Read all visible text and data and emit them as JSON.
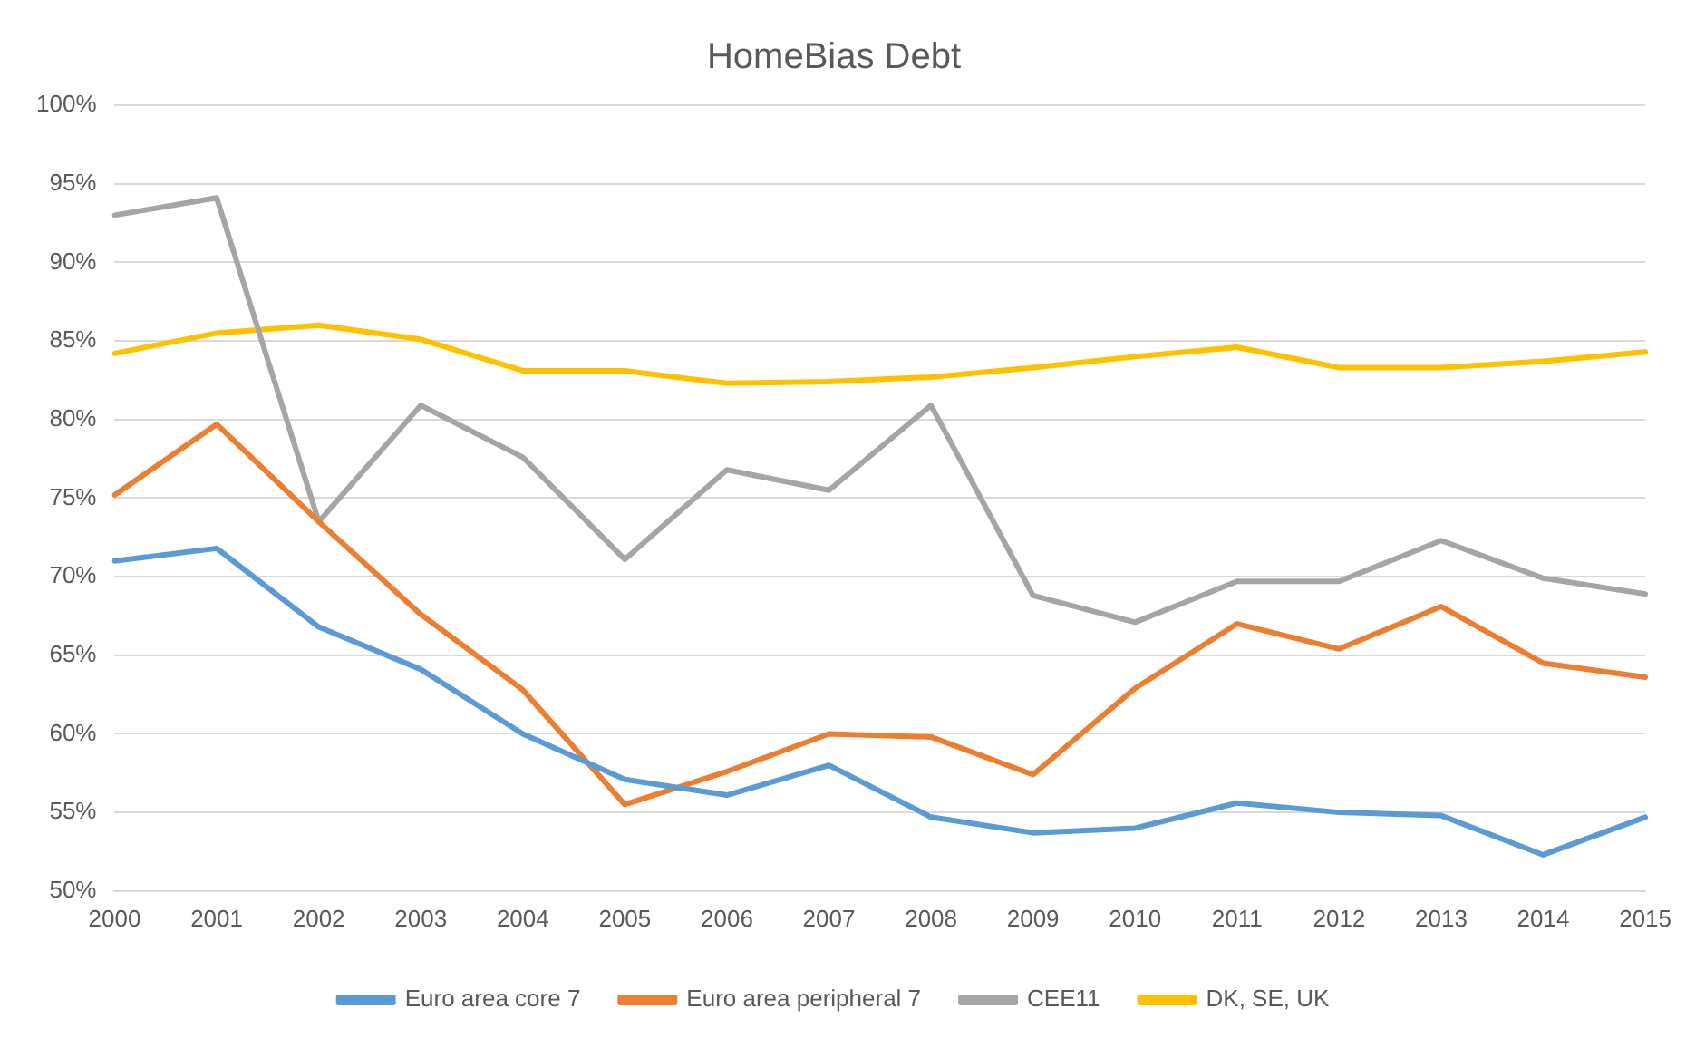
{
  "chart_data": {
    "type": "line",
    "title": "HomeBias Debt",
    "categories": [
      "2000",
      "2001",
      "2002",
      "2003",
      "2004",
      "2005",
      "2006",
      "2007",
      "2008",
      "2009",
      "2010",
      "2011",
      "2012",
      "2013",
      "2014",
      "2015"
    ],
    "series": [
      {
        "name": "Euro area core 7",
        "color": "#5b9bd5",
        "values": [
          71,
          71.8,
          66.8,
          64.1,
          60,
          57.1,
          56.1,
          58,
          54.7,
          53.7,
          54,
          55.6,
          55,
          54.8,
          52.3,
          54.7
        ]
      },
      {
        "name": "Euro area peripheral 7",
        "color": "#ed7d31",
        "values": [
          75.2,
          79.7,
          73.5,
          67.6,
          62.8,
          55.5,
          57.6,
          60,
          59.8,
          57.4,
          62.9,
          67,
          65.4,
          68.1,
          64.5,
          63.6
        ]
      },
      {
        "name": "CEE11",
        "color": "#a5a5a5",
        "values": [
          93,
          94.1,
          73.5,
          80.9,
          77.6,
          71.1,
          76.8,
          75.5,
          80.9,
          68.8,
          67.1,
          69.7,
          69.7,
          72.3,
          69.9,
          68.9
        ]
      },
      {
        "name": "DK, SE, UK",
        "color": "#ffc000",
        "values": [
          84.2,
          85.5,
          86,
          85.1,
          83.1,
          83.1,
          82.3,
          82.4,
          82.7,
          83.3,
          84,
          84.6,
          83.3,
          83.3,
          83.7,
          84.3
        ]
      }
    ],
    "ylim": [
      50,
      100
    ],
    "yticks": [
      {
        "value": 50,
        "label": "50%"
      },
      {
        "value": 55,
        "label": "55%"
      },
      {
        "value": 60,
        "label": "60%"
      },
      {
        "value": 65,
        "label": "65%"
      },
      {
        "value": 70,
        "label": "70%"
      },
      {
        "value": 75,
        "label": "75%"
      },
      {
        "value": 80,
        "label": "80%"
      },
      {
        "value": 85,
        "label": "85%"
      },
      {
        "value": 90,
        "label": "90%"
      },
      {
        "value": 95,
        "label": "95%"
      },
      {
        "value": 100,
        "label": "100%"
      }
    ],
    "grid": "y",
    "legend": "bottom",
    "marker": "none",
    "line_style": "solid"
  }
}
